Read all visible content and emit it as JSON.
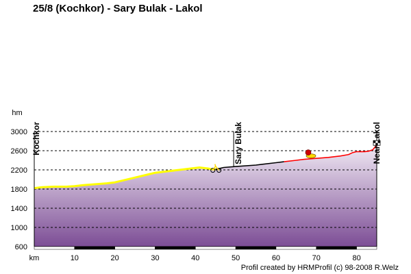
{
  "title": "25/8 (Kochkor) - Sary Bulak - Lakol",
  "credit": "Profil created by HRMProfil (c) 98-2008 R.Welz",
  "chart_data": {
    "type": "area",
    "xlabel": "km",
    "ylabel": "hm",
    "xlim": [
      0,
      85
    ],
    "ylim": [
      600,
      3000
    ],
    "x_ticks": [
      10,
      20,
      30,
      40,
      50,
      60,
      70,
      80
    ],
    "y_ticks": [
      600,
      1000,
      1400,
      1800,
      2200,
      2600,
      3000
    ],
    "grid": "horizontal-dashed",
    "places": [
      {
        "name": "Kochkor",
        "km": 0,
        "elevation": 1800
      },
      {
        "name": "Sary Bulak",
        "km": 50,
        "elevation": 2270
      },
      {
        "name": "Near Lakol",
        "km": 85,
        "elevation": 2720
      }
    ],
    "series": [
      {
        "color": "#ffff00",
        "points": [
          [
            0,
            1820
          ],
          [
            2,
            1840
          ],
          [
            5,
            1850
          ],
          [
            8,
            1850
          ],
          [
            10,
            1860
          ],
          [
            12,
            1880
          ],
          [
            15,
            1900
          ],
          [
            18,
            1920
          ],
          [
            20,
            1940
          ],
          [
            22,
            1980
          ],
          [
            25,
            2040
          ],
          [
            28,
            2100
          ],
          [
            30,
            2140
          ],
          [
            33,
            2170
          ],
          [
            36,
            2200
          ],
          [
            39,
            2230
          ],
          [
            41,
            2250
          ],
          [
            43,
            2230
          ],
          [
            44,
            2215
          ],
          [
            45,
            2210
          ]
        ]
      },
      {
        "color": "#000000",
        "points": [
          [
            45,
            2210
          ],
          [
            47,
            2250
          ],
          [
            50,
            2270
          ],
          [
            55,
            2300
          ],
          [
            60,
            2350
          ],
          [
            62,
            2370
          ]
        ]
      },
      {
        "color": "#ff0000",
        "points": [
          [
            62,
            2370
          ],
          [
            65,
            2400
          ],
          [
            67,
            2420
          ],
          [
            70,
            2440
          ],
          [
            73,
            2460
          ],
          [
            76,
            2490
          ],
          [
            78,
            2520
          ],
          [
            79,
            2560
          ],
          [
            80,
            2580
          ],
          [
            82,
            2580
          ],
          [
            83,
            2590
          ],
          [
            84,
            2620
          ],
          [
            85,
            2720
          ]
        ]
      }
    ],
    "markers": [
      {
        "name": "bicycle-marker",
        "km": 45,
        "elevation": 2220,
        "color": "#ffd700"
      },
      {
        "name": "food-marker",
        "km": 68,
        "elevation": 2520,
        "color": "#cc0000"
      },
      {
        "name": "finish-flag-marker",
        "km": 85,
        "elevation": 2740,
        "color": "#000000"
      }
    ],
    "fill_gradient": [
      "#f1eaf4",
      "#7c4d95"
    ],
    "axis_band_pattern": [
      "#ffffff",
      "#000000"
    ]
  }
}
